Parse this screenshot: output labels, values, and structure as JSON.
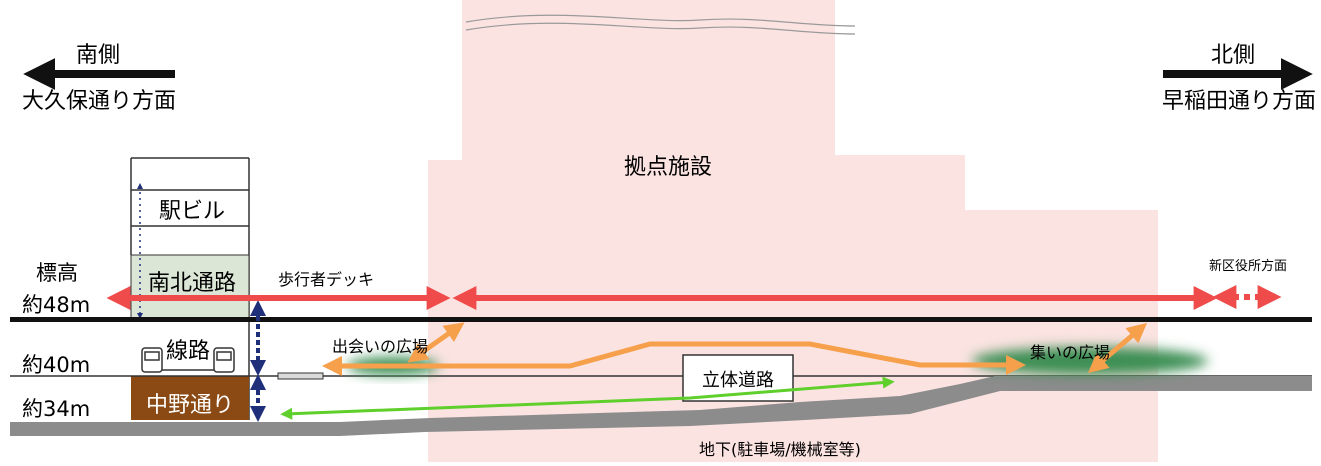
{
  "direction": {
    "south_label": "南側",
    "south_sub": "大久保通り方面",
    "north_label": "北側",
    "north_sub": "早稲田通り方面"
  },
  "elevation": {
    "label": "標高",
    "levels": [
      "約48m",
      "約40m",
      "約34m"
    ]
  },
  "building": {
    "label": "拠点施設"
  },
  "station": {
    "building_label": "駅ビル",
    "passage_label": "南北通路",
    "track_label": "線路",
    "road_label": "中野通り"
  },
  "deck_label": "歩行者デッキ",
  "ward_office_label": "新区役所方面",
  "plaza_meet_label": "出会いの広場",
  "plaza_gather_label": "集いの広場",
  "grade_separated_road_label": "立体道路",
  "underground_label": "地下(駐車場/機械室等)",
  "colors": {
    "building_fill": "#fbe3e1",
    "passage_fill": "#dbe6d6",
    "road_fill": "#8b4a13",
    "red_arrow": "#f04b4b",
    "orange_arrow": "#f6a04c",
    "green_arrow": "#5fcf2b",
    "ground_gray": "#8c8c8c",
    "navy": "#1f2f7a",
    "plaza_green": "#3d8f55"
  }
}
